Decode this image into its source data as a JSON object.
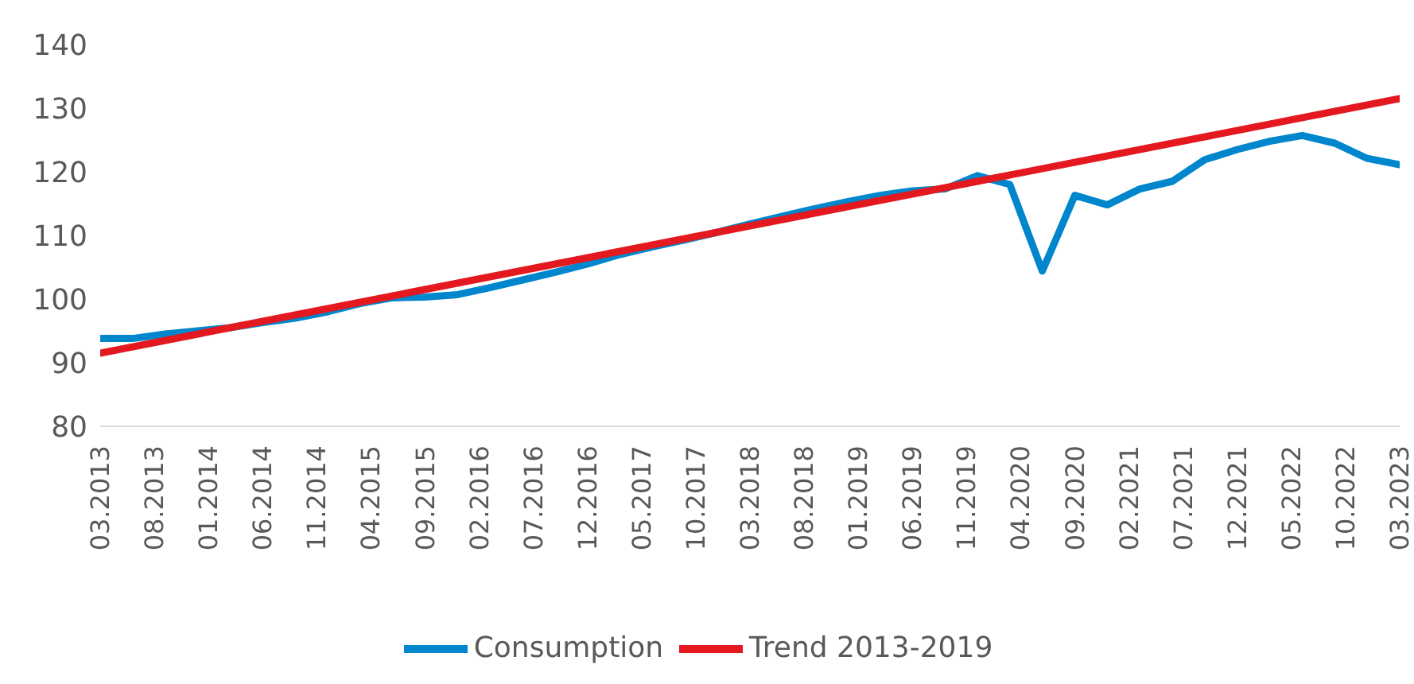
{
  "chart_data": {
    "type": "line",
    "x": [
      "2013-03",
      "2013-06",
      "2013-09",
      "2013-12",
      "2014-03",
      "2014-06",
      "2014-09",
      "2014-12",
      "2015-03",
      "2015-06",
      "2015-09",
      "2015-12",
      "2016-03",
      "2016-06",
      "2016-09",
      "2016-12",
      "2017-03",
      "2017-06",
      "2017-09",
      "2017-12",
      "2018-03",
      "2018-06",
      "2018-09",
      "2018-12",
      "2019-03",
      "2019-06",
      "2019-09",
      "2019-12",
      "2020-03",
      "2020-06",
      "2020-09",
      "2020-12",
      "2021-03",
      "2021-06",
      "2021-09",
      "2021-12",
      "2022-03",
      "2022-06",
      "2022-09",
      "2022-12",
      "2023-03"
    ],
    "series": [
      {
        "name": "Consumption",
        "color": "#0086cc",
        "values": [
          93.8,
          93.8,
          94.5,
          95,
          95.5,
          96.3,
          97,
          98,
          99.3,
          100.2,
          100.3,
          100.7,
          101.8,
          103,
          104.2,
          105.5,
          107,
          108.2,
          109.3,
          110.5,
          111.8,
          113,
          114.2,
          115.3,
          116.3,
          117,
          117.3,
          119.4,
          118,
          104.4,
          116.3,
          114.8,
          117.3,
          118.5,
          121.9,
          123.5,
          124.8,
          125.7,
          124.5,
          122.1,
          121.1
        ]
      },
      {
        "name": "Trend 2013-2019",
        "color": "#e3191f",
        "x": [
          "2013-03",
          "2023-03"
        ],
        "values": [
          91.5,
          131.5
        ]
      }
    ],
    "xlim": [
      "2013-03",
      "2023-03"
    ],
    "xticks": [
      {
        "value": "2013-03",
        "label": "03.2013"
      },
      {
        "value": "2013-08",
        "label": "08.2013"
      },
      {
        "value": "2014-01",
        "label": "01.2014"
      },
      {
        "value": "2014-06",
        "label": "06.2014"
      },
      {
        "value": "2014-11",
        "label": "11.2014"
      },
      {
        "value": "2015-04",
        "label": "04.2015"
      },
      {
        "value": "2015-09",
        "label": "09.2015"
      },
      {
        "value": "2016-02",
        "label": "02.2016"
      },
      {
        "value": "2016-07",
        "label": "07.2016"
      },
      {
        "value": "2016-12",
        "label": "12.2016"
      },
      {
        "value": "2017-05",
        "label": "05.2017"
      },
      {
        "value": "2017-10",
        "label": "10.2017"
      },
      {
        "value": "2018-03",
        "label": "03.2018"
      },
      {
        "value": "2018-08",
        "label": "08.2018"
      },
      {
        "value": "2019-01",
        "label": "01.2019"
      },
      {
        "value": "2019-06",
        "label": "06.2019"
      },
      {
        "value": "2019-11",
        "label": "11.2019"
      },
      {
        "value": "2020-04",
        "label": "04.2020"
      },
      {
        "value": "2020-09",
        "label": "09.2020"
      },
      {
        "value": "2021-02",
        "label": "02.2021"
      },
      {
        "value": "2021-07",
        "label": "07.2021"
      },
      {
        "value": "2021-12",
        "label": "12.2021"
      },
      {
        "value": "2022-05",
        "label": "05.2022"
      },
      {
        "value": "2022-10",
        "label": "10.2022"
      },
      {
        "value": "2023-03",
        "label": "03.2023"
      }
    ],
    "ylim": [
      80,
      140
    ],
    "yticks": [
      80,
      90,
      100,
      110,
      120,
      130,
      140
    ],
    "grid": false,
    "legend": "bottom",
    "marker": "none",
    "line_style": "solid"
  }
}
